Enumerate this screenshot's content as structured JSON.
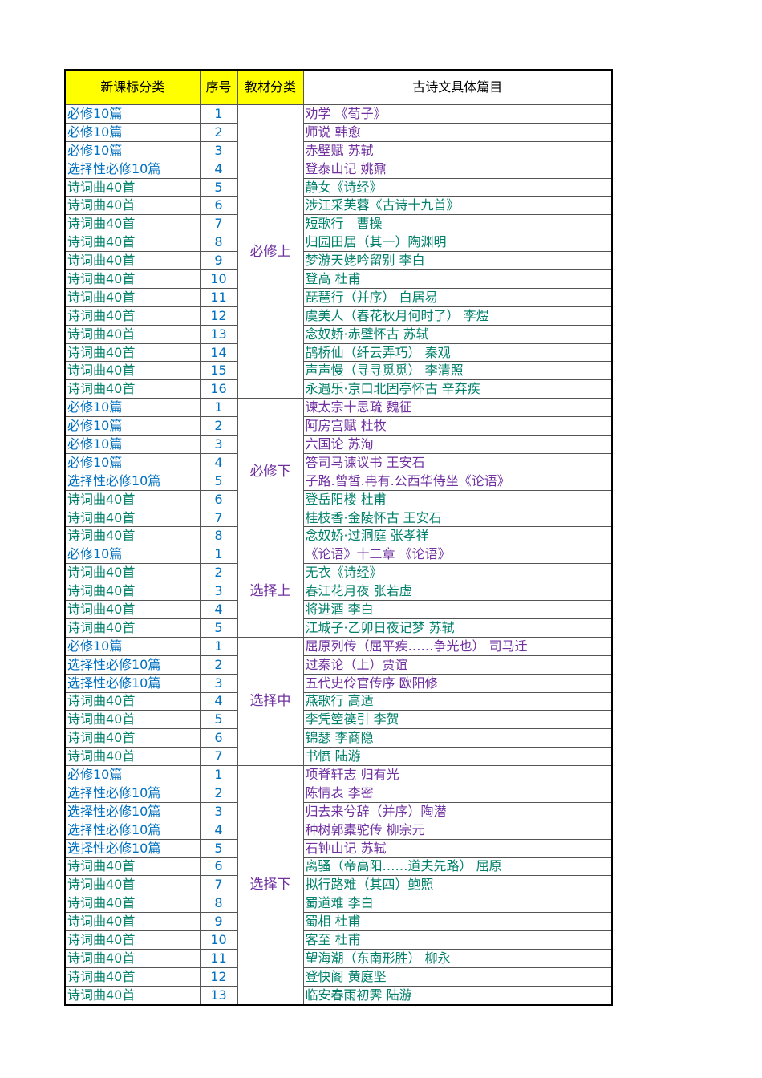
{
  "table": {
    "header": [
      "新课标分类",
      "序号",
      "教材分类",
      "古诗文具体篇目"
    ],
    "groups": [
      {
        "name": "必修上",
        "rows": [
          {
            "category": "必修10篇",
            "no": 1,
            "title": "劝学 《荀子》",
            "color": "#0070c0",
            "title_color": "#7030a0"
          },
          {
            "category": "必修10篇",
            "no": 2,
            "title": "师说 韩愈",
            "color": "#0070c0",
            "title_color": "#7030a0"
          },
          {
            "category": "必修10篇",
            "no": 3,
            "title": "赤壁赋 苏轼",
            "color": "#0070c0",
            "title_color": "#7030a0"
          },
          {
            "category": "选择性必修10篇",
            "no": 4,
            "title": "登泰山记 姚鼐",
            "color": "#0070c0",
            "title_color": "#7030a0"
          },
          {
            "category": "诗词曲40首",
            "no": 5,
            "title": "静女《诗经》",
            "color": "#00806a",
            "title_color": "#00806a"
          },
          {
            "category": "诗词曲40首",
            "no": 6,
            "title": "涉江采芙蓉《古诗十九首》",
            "color": "#00806a",
            "title_color": "#00806a"
          },
          {
            "category": "诗词曲40首",
            "no": 7,
            "title": "短歌行　曹操",
            "color": "#00806a",
            "title_color": "#00806a"
          },
          {
            "category": "诗词曲40首",
            "no": 8,
            "title": "归园田居（其一）陶渊明",
            "color": "#00806a",
            "title_color": "#00806a"
          },
          {
            "category": "诗词曲40首",
            "no": 9,
            "title": "梦游天姥吟留别 李白",
            "color": "#00806a",
            "title_color": "#00806a"
          },
          {
            "category": "诗词曲40首",
            "no": 10,
            "title": "登高 杜甫",
            "color": "#00806a",
            "title_color": "#00806a"
          },
          {
            "category": "诗词曲40首",
            "no": 11,
            "title": "琵琶行（并序） 白居易",
            "color": "#00806a",
            "title_color": "#00806a"
          },
          {
            "category": "诗词曲40首",
            "no": 12,
            "title": "虞美人（春花秋月何时了） 李煜",
            "color": "#00806a",
            "title_color": "#00806a"
          },
          {
            "category": "诗词曲40首",
            "no": 13,
            "title": "念奴娇·赤壁怀古 苏轼",
            "color": "#00806a",
            "title_color": "#00806a"
          },
          {
            "category": "诗词曲40首",
            "no": 14,
            "title": "鹊桥仙（纤云弄巧） 秦观",
            "color": "#00806a",
            "title_color": "#00806a"
          },
          {
            "category": "诗词曲40首",
            "no": 15,
            "title": "声声慢（寻寻觅觅） 李清照",
            "color": "#00806a",
            "title_color": "#00806a"
          },
          {
            "category": "诗词曲40首",
            "no": 16,
            "title": "永遇乐·京口北固亭怀古 辛弃疾",
            "color": "#00806a",
            "title_color": "#00806a"
          }
        ]
      },
      {
        "name": "必修下",
        "rows": [
          {
            "category": "必修10篇",
            "no": 1,
            "title": "谏太宗十思疏 魏征",
            "color": "#0070c0",
            "title_color": "#7030a0"
          },
          {
            "category": "必修10篇",
            "no": 2,
            "title": "阿房宫赋 杜牧",
            "color": "#0070c0",
            "title_color": "#7030a0"
          },
          {
            "category": "必修10篇",
            "no": 3,
            "title": "六国论 苏洵",
            "color": "#0070c0",
            "title_color": "#7030a0"
          },
          {
            "category": "必修10篇",
            "no": 4,
            "title": "答司马谏议书 王安石",
            "color": "#0070c0",
            "title_color": "#7030a0"
          },
          {
            "category": "选择性必修10篇",
            "no": 5,
            "title": "子路.曾皙.冉有.公西华侍坐《论语》",
            "color": "#0070c0",
            "title_color": "#7030a0"
          },
          {
            "category": "诗词曲40首",
            "no": 6,
            "title": "登岳阳楼 杜甫",
            "color": "#00806a",
            "title_color": "#00806a"
          },
          {
            "category": "诗词曲40首",
            "no": 7,
            "title": "桂枝香·金陵怀古 王安石",
            "color": "#00806a",
            "title_color": "#00806a"
          },
          {
            "category": "诗词曲40首",
            "no": 8,
            "title": "念奴娇·过洞庭 张孝祥",
            "color": "#00806a",
            "title_color": "#00806a"
          }
        ]
      },
      {
        "name": "选择上",
        "rows": [
          {
            "category": "必修10篇",
            "no": 1,
            "title": "《论语》十二章 《论语》",
            "color": "#0070c0",
            "title_color": "#7030a0"
          },
          {
            "category": "诗词曲40首",
            "no": 2,
            "title": "无衣《诗经》",
            "color": "#00806a",
            "title_color": "#00806a"
          },
          {
            "category": "诗词曲40首",
            "no": 3,
            "title": "春江花月夜 张若虚",
            "color": "#00806a",
            "title_color": "#00806a"
          },
          {
            "category": "诗词曲40首",
            "no": 4,
            "title": "将进酒 李白",
            "color": "#00806a",
            "title_color": "#00806a"
          },
          {
            "category": "诗词曲40首",
            "no": 5,
            "title": "江城子·乙卯日夜记梦 苏轼",
            "color": "#00806a",
            "title_color": "#00806a"
          }
        ]
      },
      {
        "name": "选择中",
        "rows": [
          {
            "category": "必修10篇",
            "no": 1,
            "title": "屈原列传（屈平疾……争光也） 司马迁",
            "color": "#0070c0",
            "title_color": "#7030a0"
          },
          {
            "category": "选择性必修10篇",
            "no": 2,
            "title": "过秦论（上）贾谊",
            "color": "#0070c0",
            "title_color": "#7030a0"
          },
          {
            "category": "选择性必修10篇",
            "no": 3,
            "title": "五代史伶官传序 欧阳修",
            "color": "#0070c0",
            "title_color": "#7030a0"
          },
          {
            "category": "诗词曲40首",
            "no": 4,
            "title": "燕歌行 高适",
            "color": "#00806a",
            "title_color": "#00806a"
          },
          {
            "category": "诗词曲40首",
            "no": 5,
            "title": "李凭箜篌引 李贺",
            "color": "#00806a",
            "title_color": "#00806a"
          },
          {
            "category": "诗词曲40首",
            "no": 6,
            "title": "锦瑟 李商隐",
            "color": "#00806a",
            "title_color": "#00806a"
          },
          {
            "category": "诗词曲40首",
            "no": 7,
            "title": "书愤 陆游",
            "color": "#00806a",
            "title_color": "#00806a"
          }
        ]
      },
      {
        "name": "选择下",
        "rows": [
          {
            "category": "必修10篇",
            "no": 1,
            "title": "项脊轩志 归有光",
            "color": "#0070c0",
            "title_color": "#7030a0"
          },
          {
            "category": "选择性必修10篇",
            "no": 2,
            "title": "陈情表 李密",
            "color": "#0070c0",
            "title_color": "#7030a0"
          },
          {
            "category": "选择性必修10篇",
            "no": 3,
            "title": "归去来兮辞（并序）陶潜",
            "color": "#0070c0",
            "title_color": "#7030a0"
          },
          {
            "category": "选择性必修10篇",
            "no": 4,
            "title": "种树郭橐驼传 柳宗元",
            "color": "#0070c0",
            "title_color": "#7030a0"
          },
          {
            "category": "选择性必修10篇",
            "no": 5,
            "title": "石钟山记 苏轼",
            "color": "#0070c0",
            "title_color": "#7030a0"
          },
          {
            "category": "诗词曲40首",
            "no": 6,
            "title": "离骚（帝高阳……道夫先路） 屈原",
            "color": "#00806a",
            "title_color": "#00806a"
          },
          {
            "category": "诗词曲40首",
            "no": 7,
            "title": "拟行路难（其四）鲍照",
            "color": "#00806a",
            "title_color": "#00806a"
          },
          {
            "category": "诗词曲40首",
            "no": 8,
            "title": "蜀道难 李白",
            "color": "#00806a",
            "title_color": "#00806a"
          },
          {
            "category": "诗词曲40首",
            "no": 9,
            "title": "蜀相 杜甫",
            "color": "#00806a",
            "title_color": "#00806a"
          },
          {
            "category": "诗词曲40首",
            "no": 10,
            "title": "客至 杜甫",
            "color": "#00806a",
            "title_color": "#00806a"
          },
          {
            "category": "诗词曲40首",
            "no": 11,
            "title": "望海潮（东南形胜） 柳永",
            "color": "#00806a",
            "title_color": "#00806a"
          },
          {
            "category": "诗词曲40首",
            "no": 12,
            "title": "登快阁 黄庭坚",
            "color": "#00806a",
            "title_color": "#00806a"
          },
          {
            "category": "诗词曲40首",
            "no": 13,
            "title": "临安春雨初霁 陆游",
            "color": "#00806a",
            "title_color": "#00806a"
          }
        ]
      }
    ]
  }
}
